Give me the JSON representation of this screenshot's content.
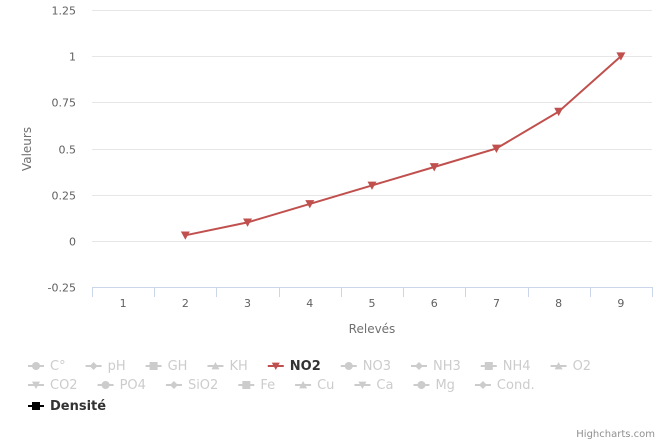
{
  "chart_data": {
    "type": "line",
    "ylabel": "Valeurs",
    "xlabel": "Relevés",
    "y_ticks": [
      "-0.25",
      "0",
      "0.25",
      "0.5",
      "0.75",
      "1",
      "1.25"
    ],
    "y_tick_values": [
      -0.25,
      0,
      0.25,
      0.5,
      0.75,
      1,
      1.25
    ],
    "ylim": [
      -0.25,
      1.25
    ],
    "categories": [
      "1",
      "2",
      "3",
      "4",
      "5",
      "6",
      "7",
      "8",
      "9"
    ],
    "series": [
      {
        "name": "NO2",
        "color": "#c0504d",
        "marker": "triangle-down",
        "values": [
          null,
          0.03,
          0.1,
          0.2,
          0.3,
          0.4,
          0.5,
          0.7,
          1.0
        ]
      }
    ],
    "grid": true,
    "legend_position": "bottom"
  },
  "legend": {
    "rows": [
      [
        {
          "name": "C°",
          "symbol": "circle",
          "active": false
        },
        {
          "name": "pH",
          "symbol": "diamond",
          "active": false
        },
        {
          "name": "GH",
          "symbol": "square",
          "active": false
        },
        {
          "name": "KH",
          "symbol": "triangle",
          "active": false
        },
        {
          "name": "NO2",
          "symbol": "triangle-down",
          "active": true,
          "color": "#c0504d"
        },
        {
          "name": "NO3",
          "symbol": "circle",
          "active": false
        },
        {
          "name": "NH3",
          "symbol": "diamond",
          "active": false
        },
        {
          "name": "NH4",
          "symbol": "square",
          "active": false
        },
        {
          "name": "O2",
          "symbol": "triangle",
          "active": false
        }
      ],
      [
        {
          "name": "CO2",
          "symbol": "triangle-down",
          "active": false
        },
        {
          "name": "PO4",
          "symbol": "circle",
          "active": false
        },
        {
          "name": "SiO2",
          "symbol": "diamond",
          "active": false
        },
        {
          "name": "Fe",
          "symbol": "square",
          "active": false
        },
        {
          "name": "Cu",
          "symbol": "triangle",
          "active": false
        },
        {
          "name": "Ca",
          "symbol": "triangle-down",
          "active": false
        },
        {
          "name": "Mg",
          "symbol": "circle",
          "active": false
        },
        {
          "name": "Cond.",
          "symbol": "diamond",
          "active": false
        }
      ],
      [
        {
          "name": "Densité",
          "symbol": "square",
          "active": true,
          "color": "#000000"
        }
      ]
    ]
  },
  "credits": "Highcharts.com",
  "colors": {
    "inactive": "#cccccc",
    "grid": "#e6e6e6",
    "axis": "#ccd6eb",
    "label": "#606060"
  }
}
